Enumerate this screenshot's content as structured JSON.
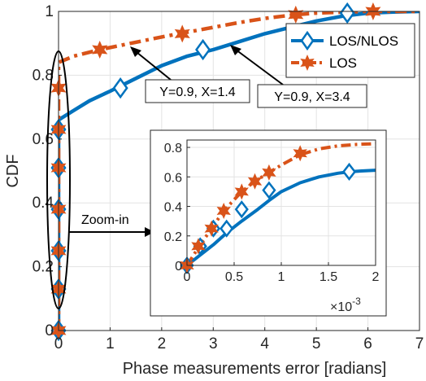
{
  "chart_data": [
    {
      "type": "line",
      "title": "",
      "xlabel": "Phase measurements error [radians]",
      "ylabel": "CDF",
      "xlim": [
        0,
        7
      ],
      "ylim": [
        0,
        1
      ],
      "xticks": [
        "0",
        "1",
        "2",
        "3",
        "4",
        "5",
        "6",
        "7"
      ],
      "yticks": [
        "0",
        "0.2",
        "0.4",
        "0.6",
        "0.8",
        "1"
      ],
      "grid": true,
      "legend_position": "top-right",
      "series": [
        {
          "name": "LOS/NLOS",
          "color": "#0072BD",
          "line_style": "solid",
          "marker": "diamond",
          "x": [
            0,
            0,
            0,
            0,
            0,
            0,
            0,
            0.3,
            0.6,
            1.0,
            1.5,
            2.0,
            2.5,
            3.0,
            3.4,
            4.0,
            4.5,
            5.0,
            5.5,
            6.0,
            6.5,
            7.0
          ],
          "y": [
            0,
            0.13,
            0.25,
            0.38,
            0.51,
            0.63,
            0.66,
            0.69,
            0.72,
            0.75,
            0.79,
            0.83,
            0.86,
            0.88,
            0.9,
            0.93,
            0.95,
            0.97,
            0.985,
            0.995,
            0.998,
            1.0
          ],
          "marker_x": [
            0,
            0,
            0,
            0,
            0,
            0,
            1.2,
            2.8,
            5.6
          ],
          "marker_y": [
            0,
            0.13,
            0.25,
            0.38,
            0.51,
            0.63,
            0.76,
            0.88,
            0.995
          ]
        },
        {
          "name": "LOS",
          "color": "#D95319",
          "line_style": "dash-dot",
          "marker": "hexagram",
          "x": [
            0,
            0,
            0,
            0,
            0,
            0,
            0,
            0,
            0.3,
            0.8,
            1.4,
            2.0,
            2.5,
            3.0,
            3.5,
            4.0,
            4.5,
            5.0,
            5.5,
            6.0,
            6.5,
            7.0
          ],
          "y": [
            0,
            0.13,
            0.25,
            0.38,
            0.51,
            0.63,
            0.76,
            0.84,
            0.86,
            0.88,
            0.9,
            0.92,
            0.935,
            0.95,
            0.965,
            0.978,
            0.988,
            0.995,
            0.998,
            1.0,
            1.0,
            1.0
          ],
          "marker_x": [
            0,
            0,
            0,
            0,
            0,
            0,
            0,
            0.8,
            2.4,
            4.6,
            6.1
          ],
          "marker_y": [
            0,
            0.13,
            0.25,
            0.38,
            0.51,
            0.63,
            0.76,
            0.88,
            0.93,
            0.99,
            1.0
          ]
        }
      ],
      "annotations": [
        "Y=0.9, X=1.4",
        "Y=0.9, X=3.4",
        "Zoom-in"
      ]
    },
    {
      "type": "line",
      "title": "",
      "xlabel": "",
      "ylabel": "",
      "xlim": [
        0,
        2
      ],
      "ylim": [
        0,
        0.85
      ],
      "xticks": [
        "0",
        "0.5",
        "1",
        "1.5",
        "2"
      ],
      "yticks": [
        "0",
        "0.2",
        "0.4",
        "0.6",
        "0.8"
      ],
      "x_exponent_base": "×10",
      "x_exponent_power": "-3",
      "grid": true,
      "series": [
        {
          "name": "LOS/NLOS",
          "color": "#0072BD",
          "line_style": "solid",
          "marker": "diamond",
          "x": [
            0,
            0.14,
            0.28,
            0.42,
            0.58,
            0.75,
            0.87,
            1.0,
            1.2,
            1.4,
            1.6,
            1.72,
            1.85,
            2.0
          ],
          "y": [
            0,
            0.07,
            0.14,
            0.22,
            0.3,
            0.38,
            0.44,
            0.5,
            0.56,
            0.6,
            0.625,
            0.635,
            0.64,
            0.645
          ],
          "marker_x": [
            0,
            0.14,
            0.28,
            0.42,
            0.58,
            0.87,
            1.72
          ],
          "marker_y": [
            0,
            0.13,
            0.25,
            0.25,
            0.38,
            0.51,
            0.635
          ]
        },
        {
          "name": "LOS",
          "color": "#D95319",
          "line_style": "dash-dot",
          "marker": "hexagram",
          "x": [
            0,
            0.12,
            0.26,
            0.39,
            0.58,
            0.72,
            0.87,
            1.0,
            1.2,
            1.4,
            1.6,
            1.8,
            2.0
          ],
          "y": [
            0,
            0.12,
            0.25,
            0.37,
            0.5,
            0.57,
            0.63,
            0.68,
            0.75,
            0.79,
            0.81,
            0.82,
            0.825
          ],
          "marker_x": [
            0,
            0.12,
            0.26,
            0.39,
            0.58,
            0.72,
            0.87,
            1.2
          ],
          "marker_y": [
            0,
            0.13,
            0.25,
            0.37,
            0.5,
            0.57,
            0.63,
            0.76
          ]
        }
      ]
    }
  ],
  "legend": {
    "items": [
      {
        "label": "LOS/NLOS",
        "color": "#0072BD",
        "marker": "diamond",
        "line_style": "solid"
      },
      {
        "label": "LOS",
        "color": "#D95319",
        "marker": "hexagram",
        "line_style": "dash-dot"
      }
    ]
  },
  "annotations": {
    "los_label": "Y=0.9, X=1.4",
    "nlos_label": "Y=0.9, X=3.4",
    "zoom_label": "Zoom-in"
  },
  "colors": {
    "los_nlos": "#0072BD",
    "los": "#D95319",
    "axis": "#262626",
    "grid": "#e3e3e3"
  }
}
